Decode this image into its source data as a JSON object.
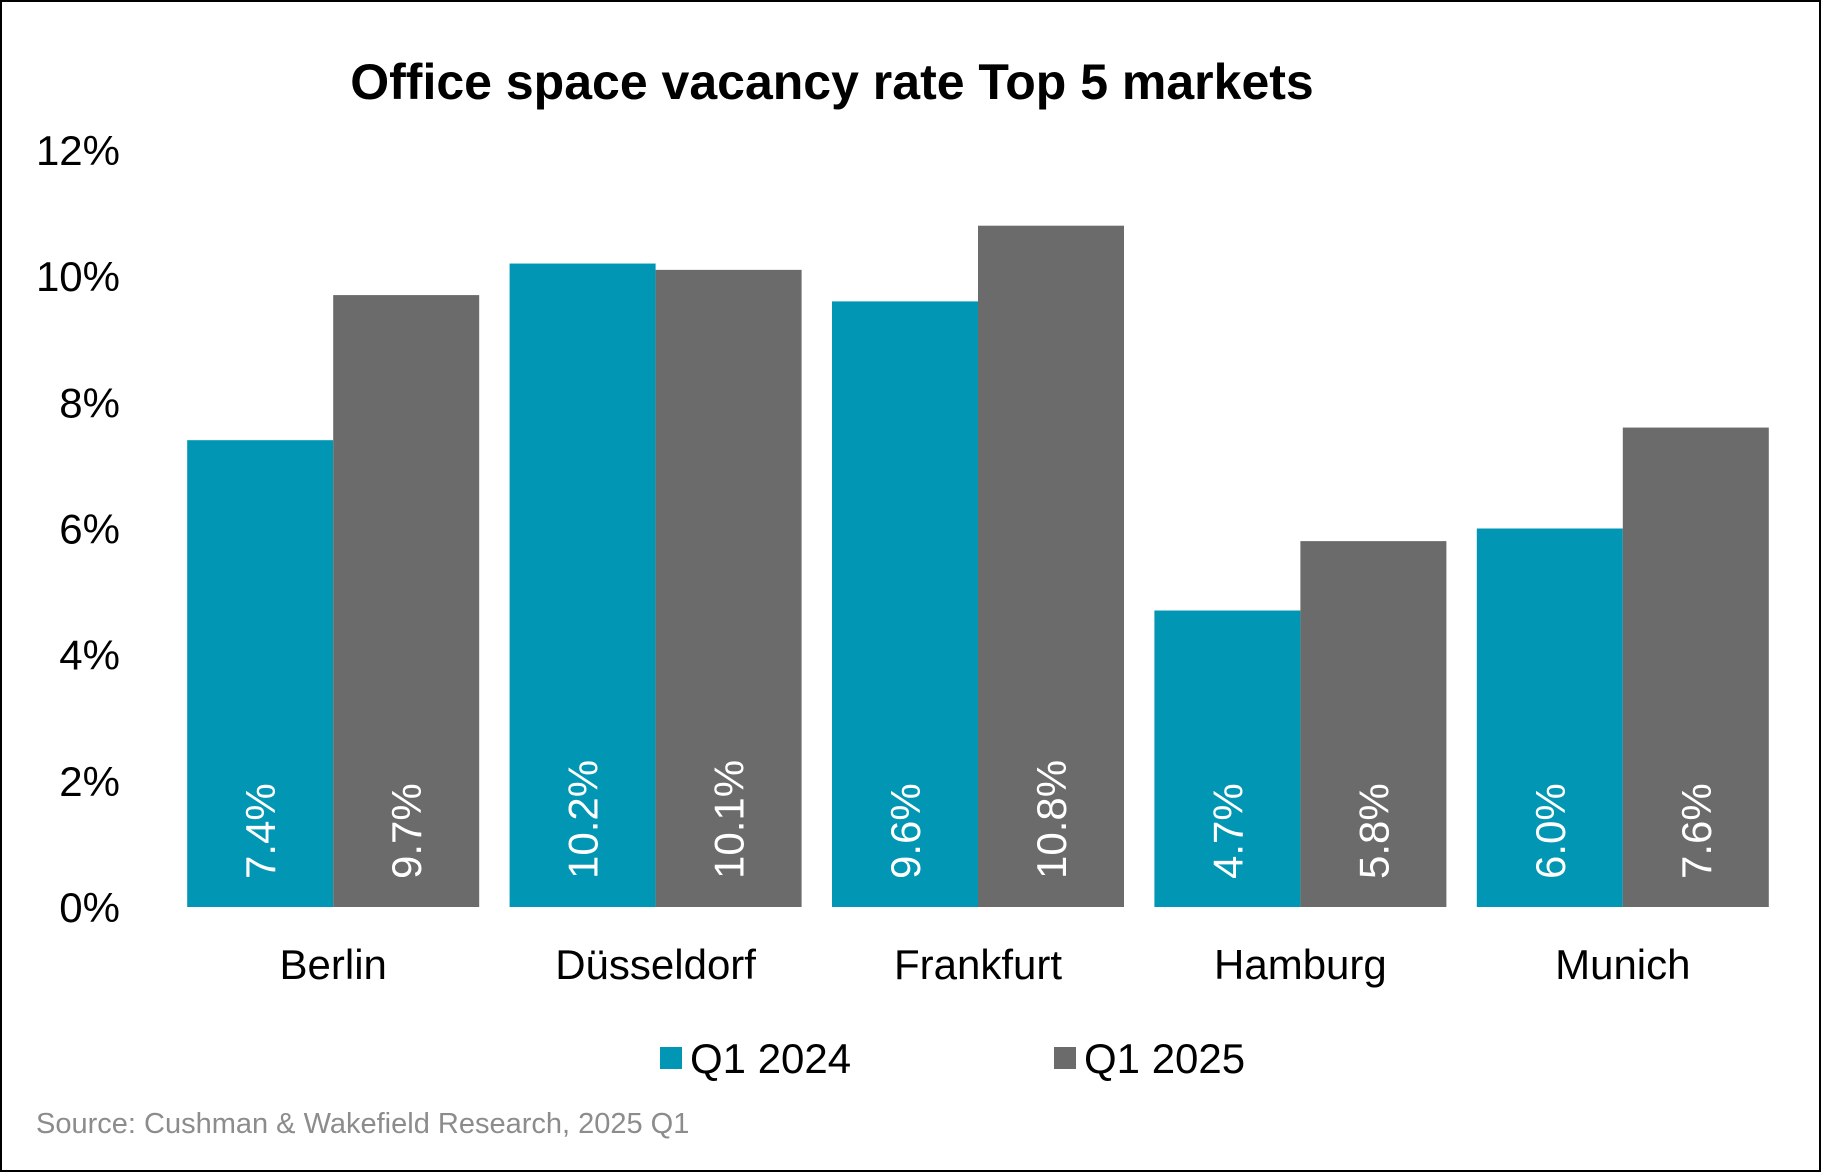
{
  "chart_data": {
    "type": "bar",
    "title": "Office space vacancy rate Top 5 markets",
    "categories": [
      "Berlin",
      "Düsseldorf",
      "Frankfurt",
      "Hamburg",
      "Munich"
    ],
    "series": [
      {
        "name": "Q1 2024",
        "color": "#0096b4",
        "values": [
          7.4,
          10.2,
          9.6,
          4.7,
          6.0
        ],
        "labels": [
          "7.4%",
          "10.2%",
          "9.6%",
          "4.7%",
          "6.0%"
        ]
      },
      {
        "name": "Q1 2025",
        "color": "#6a6b6a",
        "values": [
          9.7,
          10.1,
          10.8,
          5.8,
          7.6
        ],
        "labels": [
          "9.7%",
          "10.1%",
          "10.8%",
          "5.8%",
          "7.6%"
        ]
      }
    ],
    "ylim": [
      0,
      12
    ],
    "yticks": [
      0,
      2,
      4,
      6,
      8,
      10,
      12
    ],
    "ytick_labels": [
      "0%",
      "2%",
      "4%",
      "6%",
      "8%",
      "10%",
      "12%"
    ],
    "xlabel": "",
    "ylabel": "",
    "grid": false,
    "legend_position": "bottom",
    "source": "Source: Cushman & Wakefield Research, 2025 Q1"
  }
}
